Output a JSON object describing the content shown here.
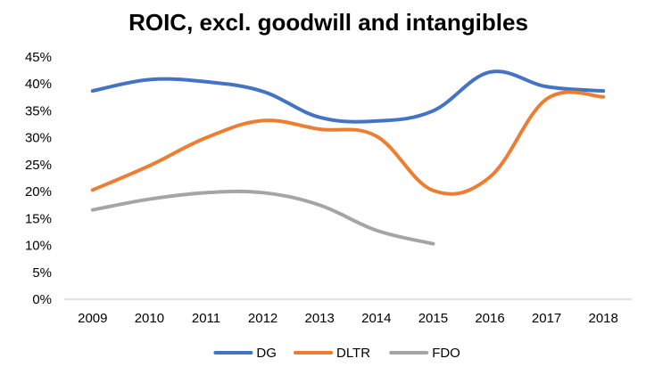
{
  "chart_data": {
    "type": "line",
    "title": "ROIC, excl. goodwill and intangibles",
    "xlabel": "",
    "ylabel": "",
    "categories": [
      "2009",
      "2010",
      "2011",
      "2012",
      "2013",
      "2014",
      "2015",
      "2016",
      "2017",
      "2018"
    ],
    "ylim": [
      0,
      45
    ],
    "yticks": [
      0,
      5,
      10,
      15,
      20,
      25,
      30,
      35,
      40,
      45
    ],
    "ytick_labels": [
      "0%",
      "5%",
      "10%",
      "15%",
      "20%",
      "25%",
      "30%",
      "35%",
      "40%",
      "45%"
    ],
    "grid": false,
    "legend_position": "bottom",
    "smooth": true,
    "series": [
      {
        "name": "DG",
        "color": "#4472C4",
        "values": [
          38.7,
          40.8,
          40.4,
          38.6,
          33.8,
          33.1,
          35.0,
          42.2,
          39.5,
          38.7
        ]
      },
      {
        "name": "DLTR",
        "color": "#ED7D31",
        "values": [
          20.3,
          24.8,
          30.0,
          33.2,
          31.6,
          30.3,
          20.2,
          22.7,
          37.2,
          37.6
        ]
      },
      {
        "name": "FDO",
        "color": "#A5A5A5",
        "values": [
          16.6,
          18.6,
          19.8,
          19.8,
          17.5,
          12.8,
          10.3,
          null,
          null,
          null
        ]
      }
    ]
  }
}
